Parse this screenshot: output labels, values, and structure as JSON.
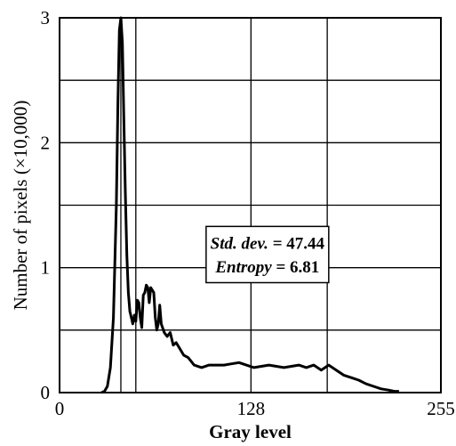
{
  "chart_data": {
    "type": "line",
    "xlabel": "Gray level",
    "ylabel": "Number of pixels (×10,000)",
    "xlim": [
      0,
      255
    ],
    "ylim": [
      0,
      3
    ],
    "x_ticks": [
      {
        "value": 0,
        "label": "0"
      },
      {
        "value": 128,
        "label": "128"
      },
      {
        "value": 255,
        "label": "255"
      }
    ],
    "y_ticks": [
      {
        "value": 0,
        "label": "0"
      },
      {
        "value": 1,
        "label": "1"
      },
      {
        "value": 2,
        "label": "2"
      },
      {
        "value": 3,
        "label": "3"
      }
    ],
    "grid": true,
    "grid_x_lines": [
      41,
      51,
      128,
      179
    ],
    "grid_y_lines": [
      0.5,
      1.0,
      1.5,
      2.0,
      2.5
    ],
    "annotation": {
      "stddev_label": "Std. dev.",
      "stddev_value": "= 47.44",
      "entropy_label": "Entropy",
      "entropy_value": "= 6.81"
    },
    "series": [
      {
        "x": [
          28,
          30,
          32,
          34,
          36,
          38,
          39,
          40,
          41,
          42,
          43,
          44,
          45,
          46,
          47,
          48,
          49,
          50,
          51,
          52,
          53,
          54,
          55,
          56,
          57,
          58,
          59,
          60,
          61,
          62,
          63,
          64,
          65,
          66,
          67,
          68,
          70,
          72,
          74,
          76,
          78,
          80,
          83,
          86,
          90,
          95,
          100,
          110,
          120,
          130,
          140,
          150,
          160,
          165,
          170,
          175,
          180,
          185,
          190,
          195,
          200,
          205,
          210,
          215,
          220,
          224,
          227
        ],
        "y": [
          0.0,
          0.01,
          0.05,
          0.2,
          0.6,
          1.5,
          2.3,
          2.9,
          3.0,
          2.8,
          2.2,
          1.6,
          1.1,
          0.8,
          0.65,
          0.6,
          0.55,
          0.62,
          0.57,
          0.74,
          0.72,
          0.6,
          0.52,
          0.78,
          0.8,
          0.86,
          0.84,
          0.72,
          0.84,
          0.82,
          0.8,
          0.6,
          0.5,
          0.55,
          0.7,
          0.55,
          0.48,
          0.45,
          0.48,
          0.38,
          0.4,
          0.36,
          0.3,
          0.28,
          0.22,
          0.2,
          0.22,
          0.22,
          0.24,
          0.2,
          0.22,
          0.2,
          0.22,
          0.2,
          0.22,
          0.18,
          0.22,
          0.18,
          0.14,
          0.12,
          0.1,
          0.07,
          0.05,
          0.03,
          0.02,
          0.01,
          0.01
        ]
      }
    ]
  }
}
